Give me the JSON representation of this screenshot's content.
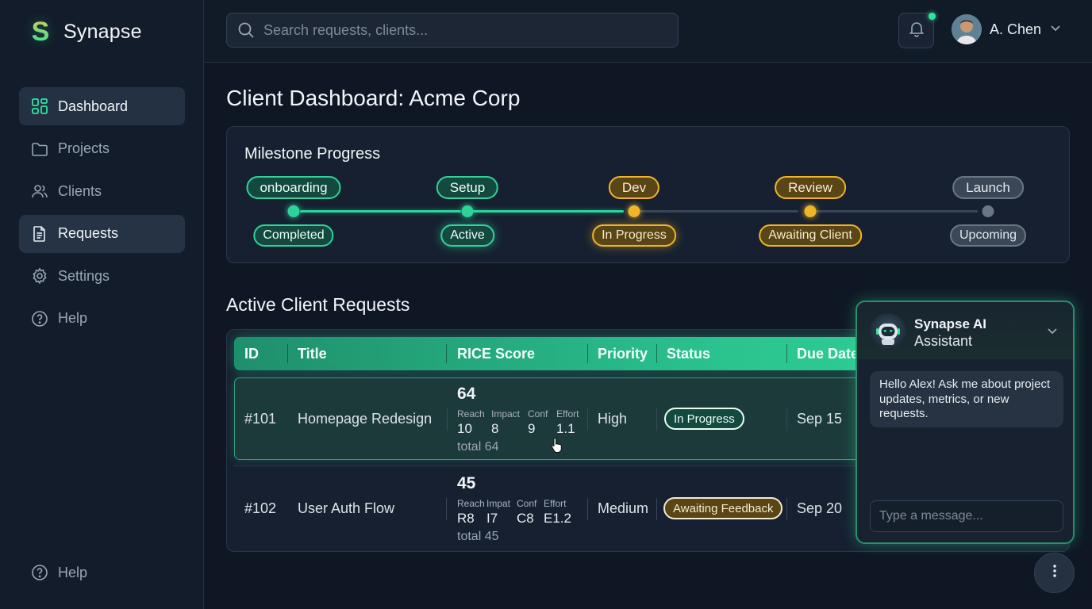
{
  "app": {
    "name": "Synapse",
    "logo_letter": "S"
  },
  "colors": {
    "accent": "#2ee59d",
    "warning": "#f0b429",
    "muted": "#6b7685",
    "background": "#0f1724"
  },
  "sidebar": {
    "items": [
      {
        "label": "Dashboard",
        "icon": "grid-icon"
      },
      {
        "label": "Projects",
        "icon": "folder-icon"
      },
      {
        "label": "Clients",
        "icon": "users-icon"
      },
      {
        "label": "Requests",
        "icon": "document-icon"
      },
      {
        "label": "Settings",
        "icon": "gear-icon"
      },
      {
        "label": "Help",
        "icon": "help-icon"
      }
    ],
    "bottom_help": "Help"
  },
  "topbar": {
    "search_placeholder": "Search requests, clients...",
    "user_name": "A. Chen"
  },
  "page": {
    "title": "Client Dashboard: Acme Corp"
  },
  "milestones": {
    "title": "Milestone Progress",
    "stages": [
      {
        "label": "onboarding",
        "status": "Completed",
        "tone": "green"
      },
      {
        "label": "Setup",
        "status": "Active",
        "tone": "green"
      },
      {
        "label": "Dev",
        "status": "In Progress",
        "tone": "yellow"
      },
      {
        "label": "Review",
        "status": "Awaiting Client",
        "tone": "yellow"
      },
      {
        "label": "Launch",
        "status": "Upcoming",
        "tone": "gray"
      }
    ]
  },
  "requests": {
    "title": "Active Client Requests",
    "columns": [
      "ID",
      "Title",
      "RICE Score",
      "Priority",
      "Status",
      "Due Date"
    ],
    "rows": [
      {
        "id": "#101",
        "title": "Homepage Redesign",
        "rice": {
          "score": "64",
          "labels": [
            "Reach",
            "Impact",
            "Conf",
            "Effort"
          ],
          "values": [
            "10",
            "8",
            "9",
            "1.1"
          ],
          "total": "total 64"
        },
        "priority": "High",
        "status": "In Progress",
        "status_tone": "green",
        "due": "Sep 15"
      },
      {
        "id": "#102",
        "title": "User Auth Flow",
        "rice": {
          "score": "45",
          "labels": [
            "Reach",
            "Impat",
            "Conf",
            "Effort"
          ],
          "values": [
            "R8",
            "I7",
            "C8",
            "E1.2"
          ],
          "total": "total 45"
        },
        "priority": "Medium",
        "status": "Awaiting Feedback",
        "status_tone": "yellow",
        "due": "Sep 20"
      }
    ]
  },
  "assistant": {
    "name": "Synapse AI",
    "subtitle": "Assistant",
    "greeting": "Hello Alex! Ask me about project updates, metrics, or new requests.",
    "input_placeholder": "Type a message..."
  }
}
